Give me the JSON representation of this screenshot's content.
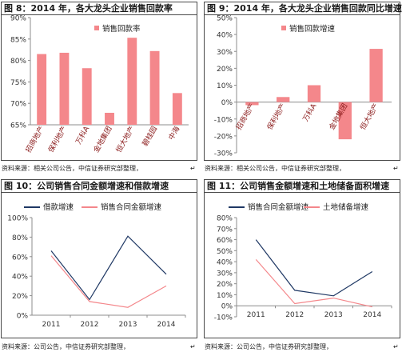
{
  "panels": [
    {
      "id": "fig8",
      "title": "图 8：2014 年，各大龙头企业销售回款率",
      "source": "资料来源：相关公司公告，中信证券研究部整理，",
      "mark": "↵"
    },
    {
      "id": "fig9",
      "title": "图 9：2014 年，各大龙头企业销售回款同比增速",
      "source": "资料来源：相关公司公告，中信证券研究部整理，",
      "mark": "↵"
    },
    {
      "id": "fig10",
      "title": "图 10：公司销售合同金额增速和借款增速",
      "source": "资料来源：公司公告，中信证券研究部整理，",
      "mark": "↵"
    },
    {
      "id": "fig11",
      "title": "图 11：公司销售金额增速和土地储备面积增速",
      "source": "资料来源：公司公告，中信证券研究部整理，",
      "mark": "↵"
    }
  ],
  "chart_data": [
    {
      "type": "bar",
      "categories": [
        "招商地产",
        "保利地产",
        "万科A",
        "金地集团",
        "恒大地产",
        "碧桂园",
        "中海"
      ],
      "series": [
        {
          "name": "销售回款率",
          "values": [
            81.5,
            81.8,
            78.2,
            67.8,
            85.3,
            82.2,
            72.4
          ],
          "color": "#f4878b"
        }
      ],
      "ylim": [
        65,
        90
      ],
      "yticks": [
        65,
        70,
        75,
        80,
        85,
        90
      ],
      "tick_suffix": "%",
      "legend": "top-right"
    },
    {
      "type": "bar",
      "categories": [
        "招商地产",
        "保利地产",
        "万科A",
        "金地集团",
        "恒大地产"
      ],
      "series": [
        {
          "name": "销售回款增速",
          "values": [
            -1.8,
            3.0,
            10.0,
            -22.0,
            31.5
          ],
          "color": "#f4878b"
        }
      ],
      "ylim": [
        -30,
        50
      ],
      "yticks": [
        -30,
        -20,
        -10,
        0,
        10,
        20,
        30,
        40,
        50
      ],
      "tick_suffix": "%",
      "legend": "top-right"
    },
    {
      "type": "line",
      "x": [
        "2011",
        "2012",
        "2013",
        "2014"
      ],
      "series": [
        {
          "name": "借款增速",
          "values": [
            66,
            16,
            81,
            42
          ],
          "color": "#1f3864"
        },
        {
          "name": "销售合同金额增速",
          "values": [
            61,
            14,
            8,
            30
          ],
          "color": "#f4878b"
        }
      ],
      "ylim": [
        0,
        100
      ],
      "yticks": [
        0,
        20,
        40,
        60,
        80,
        100
      ],
      "tick_suffix": "%",
      "legend": "top"
    },
    {
      "type": "line",
      "x": [
        "2011",
        "2012",
        "2013",
        "2014"
      ],
      "series": [
        {
          "name": "销售合同金额增速",
          "values": [
            60,
            14,
            9,
            31
          ],
          "color": "#1f3864"
        },
        {
          "name": "土地储备增速",
          "values": [
            42,
            2,
            7,
            -1
          ],
          "color": "#f4878b"
        }
      ],
      "ylim": [
        -10,
        80
      ],
      "yticks": [
        -10,
        0,
        10,
        20,
        30,
        40,
        50,
        60,
        70,
        80
      ],
      "tick_suffix": "%",
      "legend": "top"
    }
  ]
}
